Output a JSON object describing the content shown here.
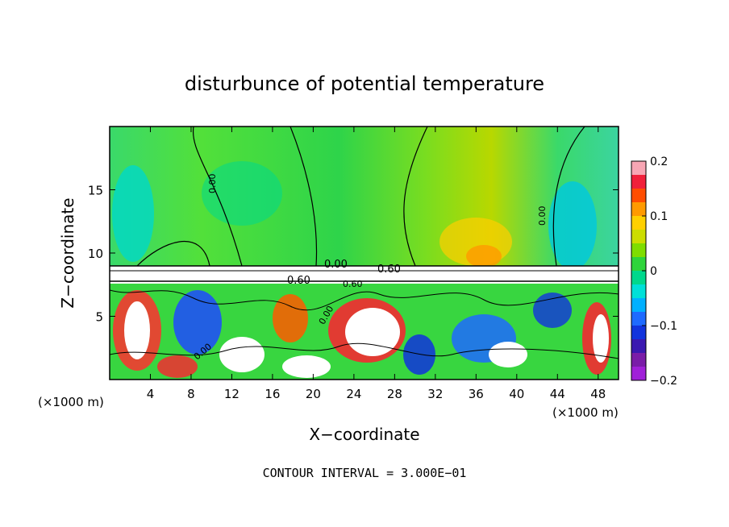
{
  "chart_data": {
    "type": "heatmap",
    "title": "disturbunce of potential temperature",
    "xlabel": "X−coordinate",
    "ylabel": "Z−coordinate",
    "x_unit_label": "(×1000 m)",
    "y_unit_label": "(×1000 m)",
    "xlim": [
      0,
      50
    ],
    "ylim": [
      0,
      20
    ],
    "x_ticks": [
      4,
      8,
      12,
      16,
      20,
      24,
      28,
      32,
      36,
      40,
      44,
      48
    ],
    "x_tick_labels": [
      "4",
      "8",
      "12",
      "16",
      "20",
      "24",
      "28",
      "32",
      "36",
      "40",
      "44",
      "48"
    ],
    "y_ticks": [
      5,
      10,
      15
    ],
    "y_tick_labels": [
      "5",
      "10",
      "15"
    ],
    "colorbar": {
      "range": [
        -0.2,
        0.2
      ],
      "tick_values": [
        0.2,
        0.1,
        0,
        -0.1,
        -0.2
      ],
      "tick_labels": [
        "0.2",
        "0.1",
        "0",
        "−0.1",
        "−0.2"
      ],
      "colors": [
        "#f7a6b4",
        "#f0203a",
        "#ff4d00",
        "#ff9a00",
        "#ffd000",
        "#ccdd00",
        "#7fdd00",
        "#2ed43b",
        "#00d88c",
        "#00e0d8",
        "#00b0ff",
        "#1e6aff",
        "#1133dd",
        "#3a18b0",
        "#7a1ca8",
        "#a020d8"
      ]
    },
    "contour_labels": [
      "0.00",
      "0.60",
      "0.60",
      "0.00",
      "0.00",
      "0.00",
      "0.00",
      "0.60"
    ],
    "contour_interval_text": "CONTOUR INTERVAL = 3.000E−01"
  }
}
